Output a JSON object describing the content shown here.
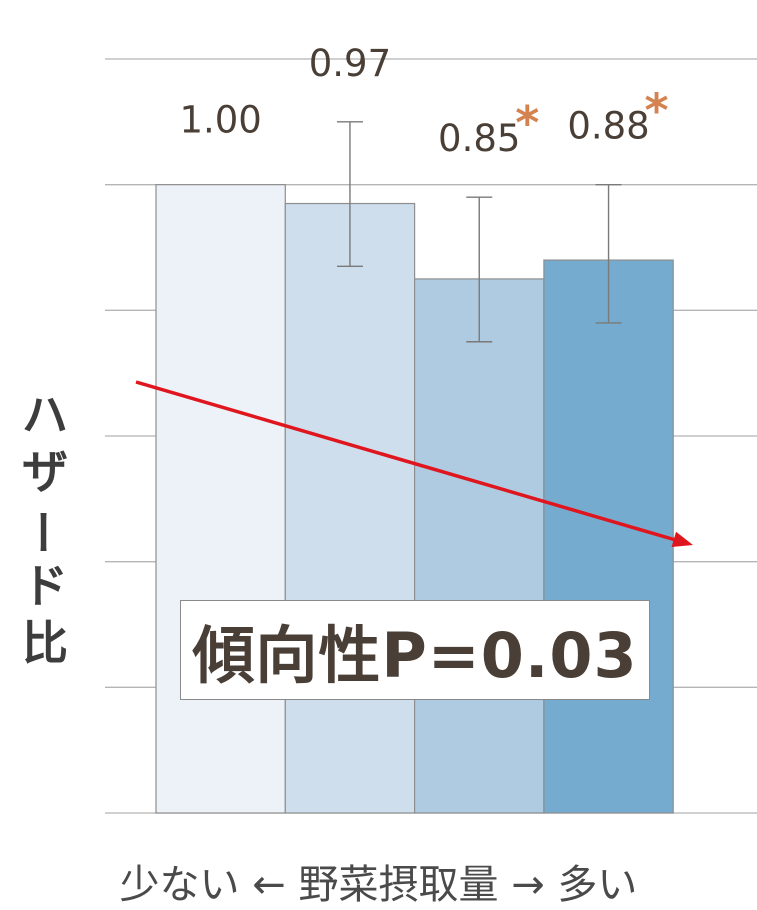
{
  "chart_data": {
    "type": "bar",
    "categories": [
      "",
      "",
      "",
      ""
    ],
    "values": [
      1.0,
      0.97,
      0.85,
      0.88
    ],
    "value_labels": [
      "1.00",
      "0.97",
      "0.85",
      "0.88"
    ],
    "error_low": [
      null,
      0.87,
      0.75,
      0.78
    ],
    "error_high": [
      null,
      1.1,
      0.98,
      1.0
    ],
    "significant": [
      false,
      false,
      true,
      true
    ],
    "significance_mark": "*",
    "bar_colors": [
      "#edf2f9",
      "#cedeed",
      "#aecbe2",
      "#76abd0"
    ],
    "significance_color": "#d4824f",
    "ylim": [
      0.0,
      1.2
    ],
    "ylabel": "ハザード比",
    "xlabel": "少ない ← 野菜摂取量 → 多い",
    "trend": {
      "label": "傾向性P=0.03",
      "direction": "decreasing",
      "color": "#e0161e"
    },
    "grid": true
  }
}
